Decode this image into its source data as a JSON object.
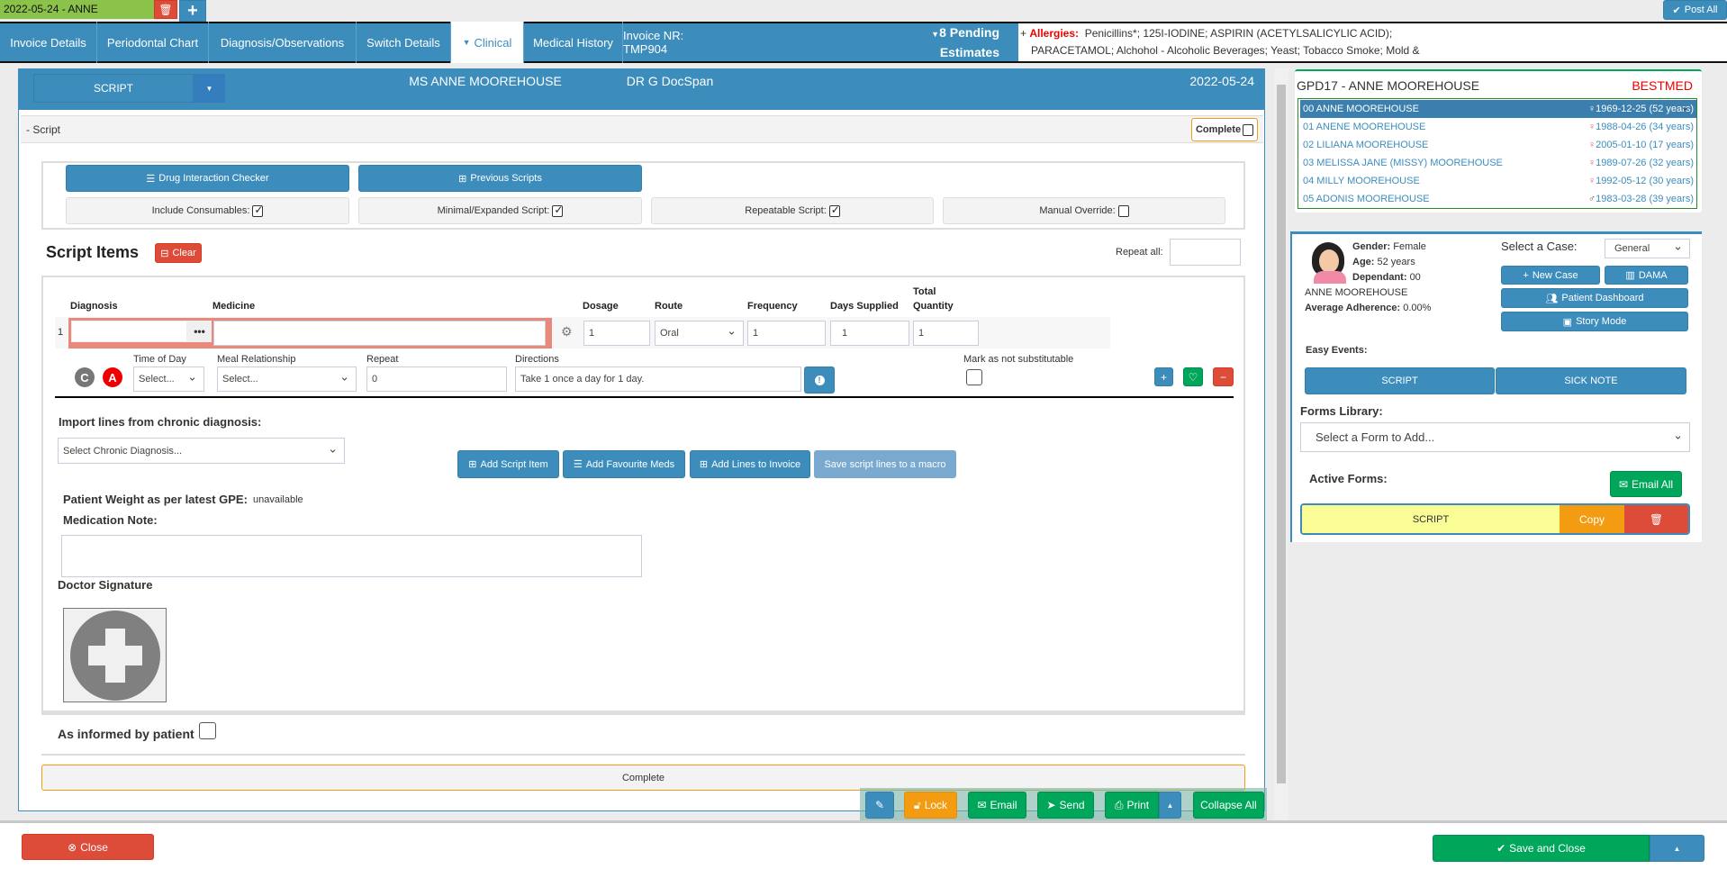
{
  "top_tabs": {
    "active_label": "2022-05-24 - ANNE",
    "post_all": "Post All"
  },
  "nav": {
    "tabs": [
      "Invoice Details",
      "Periodontal Chart",
      "Diagnosis/Observations",
      "Switch Details",
      "Clinical",
      "Medical History",
      "Invoice NR: TMP904"
    ],
    "active_tab": "Clinical",
    "pending_line1": "8 Pending",
    "pending_line2": "Estimates",
    "allergies_label": "Allergies:",
    "allergies_line1": "Penicillins*; 125I-IODINE; ASPIRIN (ACETYLSALICYLIC ACID);",
    "allergies_line2": "PARACETAMOL; Alchohol - Alcoholic Beverages; Yeast; Tobacco Smoke; Mold &"
  },
  "form_header": {
    "form_select": "SCRIPT",
    "patient": "MS ANNE MOOREHOUSE",
    "doctor": "DR G DocSpan",
    "date": "2022-05-24"
  },
  "script_section": {
    "title": "- Script",
    "complete_label": "Complete",
    "drug_interaction": "Drug Interaction Checker",
    "previous_scripts": "Previous Scripts",
    "options": [
      {
        "label": "Include Consumables:",
        "checked": true
      },
      {
        "label": "Minimal/Expanded Script:",
        "checked": true
      },
      {
        "label": "Repeatable Script:",
        "checked": true
      },
      {
        "label": "Manual Override:",
        "checked": false
      }
    ]
  },
  "script_items": {
    "title": "Script Items",
    "clear": "Clear",
    "repeat_all_label": "Repeat all:",
    "repeat_all_value": "",
    "columns": {
      "diagnosis": "Diagnosis",
      "medicine": "Medicine",
      "dosage": "Dosage",
      "route": "Route",
      "frequency": "Frequency",
      "days_supplied": "Days Supplied",
      "total": "Total",
      "quantity": "Quantity"
    },
    "row": {
      "number": "1",
      "diagnosis": "",
      "medicine": "",
      "dosage": "1",
      "route": "Oral",
      "frequency": "1",
      "days_supplied": "1",
      "total_quantity": "1",
      "c_badge": "C",
      "a_badge": "A",
      "time_of_day_label": "Time of Day",
      "time_of_day": "Select...",
      "meal_label": "Meal Relationship",
      "meal": "Select...",
      "repeat_label": "Repeat",
      "repeat": "0",
      "directions_label": "Directions",
      "directions": "Take 1 once a day for 1 day.",
      "not_substitutable_label": "Mark as not substitutable"
    },
    "import_label": "Import lines from chronic diagnosis:",
    "chronic_select": "Select Chronic Diagnosis...",
    "add_script_item": "Add Script Item",
    "add_favourite": "Add Favourite Meds",
    "add_lines_invoice": "Add Lines to Invoice",
    "save_macro": "Save script lines to a macro",
    "weight_label": "Patient Weight as per latest GPE:",
    "weight_value": "unavailable",
    "med_note_label": "Medication Note:",
    "med_note": "",
    "signature_label": "Doctor Signature",
    "informed_label": "As informed by patient",
    "complete_bar": "Complete"
  },
  "toolbar": {
    "lock": "Lock",
    "email": "Email",
    "send": "Send",
    "print": "Print",
    "collapse": "Collapse All"
  },
  "footer": {
    "close": "Close",
    "save_close": "Save and Close"
  },
  "patient_card": {
    "title": "GPD17 - ANNE MOOREHOUSE",
    "medical_aid": "BESTMED",
    "family": [
      {
        "name": "00 ANNE MOOREHOUSE",
        "dob": "1969-12-25 (52 years)",
        "gender": "female"
      },
      {
        "name": "01 ANENE MOOREHOUSE",
        "dob": "1988-04-26 (34 years)",
        "gender": "female"
      },
      {
        "name": "02 LILIANA MOOREHOUSE",
        "dob": "2005-01-10 (17 years)",
        "gender": "female"
      },
      {
        "name": "03 MELISSA JANE (MISSY) MOOREHOUSE",
        "dob": "1989-07-26 (32 years)",
        "gender": "female"
      },
      {
        "name": "04 MILLY MOOREHOUSE",
        "dob": "1992-05-12 (30 years)",
        "gender": "female"
      },
      {
        "name": "05 ADONIS MOOREHOUSE",
        "dob": "1983-03-28 (39 years)",
        "gender": "male"
      }
    ]
  },
  "patient_info": {
    "gender_label": "Gender:",
    "gender": "Female",
    "age_label": "Age:",
    "age": "52 years",
    "dependant_label": "Dependant:",
    "dependant": "00",
    "name": "ANNE MOOREHOUSE",
    "adherence_label": "Average Adherence:",
    "adherence": "0.00%",
    "case_label": "Select a Case:",
    "case": "General",
    "new_case": "New Case",
    "dama": "DAMA",
    "dashboard": "Patient Dashboard",
    "story": "Story Mode",
    "easy_events_label": "Easy Events:",
    "easy_script": "SCRIPT",
    "easy_sick": "SICK NOTE",
    "forms_library_label": "Forms Library:",
    "forms_select": "Select a Form to Add...",
    "active_forms_label": "Active Forms:",
    "email_all": "Email All",
    "active_form": "SCRIPT",
    "copy": "Copy"
  },
  "colors": {
    "primary": "#3c8dbc",
    "success": "#00a65a",
    "danger": "#dd4b39",
    "warning": "#f39c12",
    "tab_green": "#8bc34a",
    "form_yellow": "#fafc95"
  }
}
